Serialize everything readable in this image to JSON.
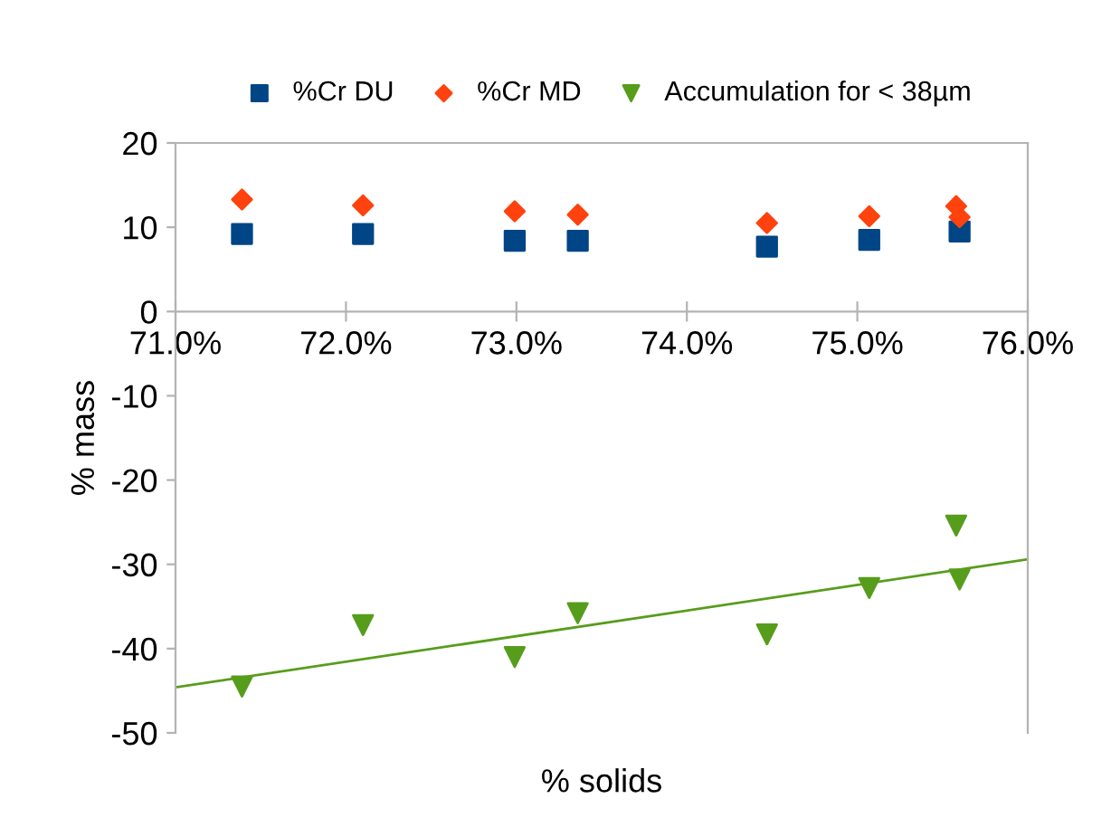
{
  "chart_data": {
    "type": "scatter",
    "xlabel": "% solids",
    "ylabel": "% mass",
    "legend": "top",
    "xlim": [
      71,
      76
    ],
    "xticks": [
      {
        "value": 71,
        "label": "71.0%"
      },
      {
        "value": 72,
        "label": "72.0%"
      },
      {
        "value": 73,
        "label": "73.0%"
      },
      {
        "value": 74,
        "label": "74.0%"
      },
      {
        "value": 75,
        "label": "75.0%"
      },
      {
        "value": 76,
        "label": "76.0%"
      }
    ],
    "ylim": [
      -50,
      20
    ],
    "yticks": [
      -50,
      -40,
      -30,
      -20,
      -10,
      0,
      10,
      20
    ],
    "grid": false,
    "x": [
      71.39,
      72.1,
      72.99,
      73.36,
      74.47,
      75.07,
      75.58,
      75.6
    ],
    "series": [
      {
        "name": "%Cr DU",
        "color": "#004586",
        "marker": "square",
        "values": [
          9.2,
          9.2,
          8.4,
          8.4,
          7.7,
          8.5,
          null,
          9.5
        ]
      },
      {
        "name": "%Cr MD",
        "color": "#ff420e",
        "marker": "diamond",
        "values": [
          13.3,
          12.6,
          11.9,
          11.5,
          10.5,
          11.3,
          12.5,
          11.2
        ]
      },
      {
        "name": "Accumulation for < 38µm",
        "color": "#579d1c",
        "marker": "triangle",
        "values": [
          -44.5,
          -37.2,
          -41,
          -35.8,
          -38.3,
          -32.8,
          -25.4,
          -31.8
        ]
      },
      {
        "type": "line",
        "color": "#579d1c",
        "x": [
          71,
          76
        ],
        "values": [
          -44.6,
          -29.4
        ]
      }
    ]
  }
}
